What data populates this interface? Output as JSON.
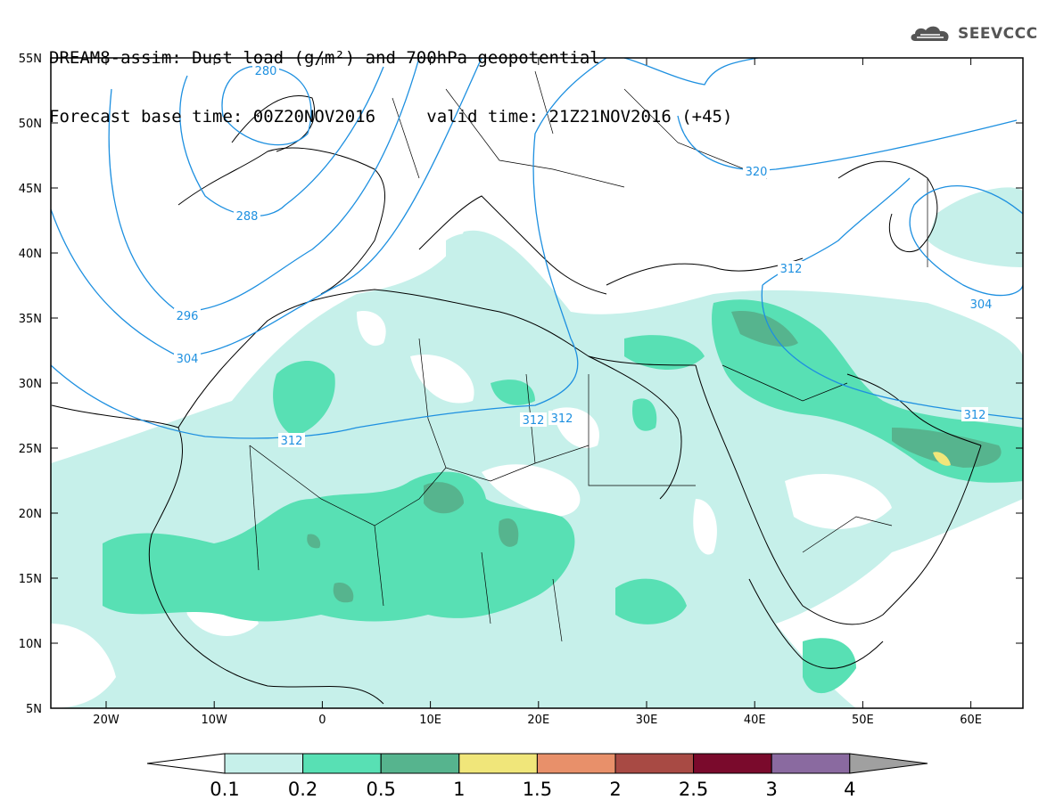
{
  "title": {
    "line1": "DREAM8-assim: Dust load (g/m²) and 700hPa geopotential",
    "base_label": "Forecast base time: 00Z20NOV2016",
    "valid_label": "valid time: 21Z21NOV2016 (+45)"
  },
  "logo": {
    "text": "SEEVCCC",
    "icon": "cloud-icon",
    "color": "#555555"
  },
  "axes": {
    "lat_labels": [
      "55N",
      "50N",
      "45N",
      "40N",
      "35N",
      "30N",
      "25N",
      "20N",
      "15N",
      "10N",
      "5N"
    ],
    "lon_labels": [
      "20W",
      "10W",
      "0",
      "10E",
      "20E",
      "30E",
      "40E",
      "50E",
      "60E"
    ]
  },
  "contours": {
    "color": "#1e90e0",
    "labels": [
      "280",
      "288",
      "296",
      "304",
      "312",
      "312",
      "312",
      "320",
      "312",
      "304",
      "312"
    ]
  },
  "legend": {
    "ticks": [
      "0.1",
      "0.2",
      "0.5",
      "1",
      "1.5",
      "2",
      "2.5",
      "3",
      "4"
    ],
    "colors": [
      "#c6f0ea",
      "#58e0b4",
      "#56b48e",
      "#f0e67a",
      "#e8906a",
      "#a84a44",
      "#7a0a2c",
      "#8a6aa0",
      "#a0a0a0"
    ],
    "under_color": "#ffffff"
  }
}
